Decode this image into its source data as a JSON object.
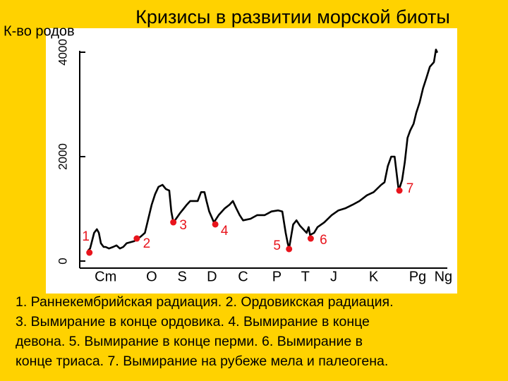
{
  "chart_data": {
    "type": "line",
    "title": "Кризисы в развитии морской биоты",
    "ylabel": "К-во родов",
    "xlim": [
      540,
      0
    ],
    "xticks": [
      {
        "value": 509,
        "label": "Cm"
      },
      {
        "value": 441,
        "label": "O"
      },
      {
        "value": 396,
        "label": "S"
      },
      {
        "value": 352,
        "label": "D"
      },
      {
        "value": 306,
        "label": "C"
      },
      {
        "value": 256,
        "label": "P"
      },
      {
        "value": 214,
        "label": "T"
      },
      {
        "value": 172,
        "label": "J"
      },
      {
        "value": 113,
        "label": "K"
      },
      {
        "value": 48,
        "label": "Pg"
      },
      {
        "value": 10,
        "label": "Ng"
      }
    ],
    "ylim": [
      0,
      4000
    ],
    "yticks": [
      0,
      2000,
      4000
    ],
    "series": [
      {
        "color": "#000000",
        "x": [
          535,
          532,
          526,
          522,
          519,
          516,
          512,
          509,
          504,
          498,
          493,
          488,
          483,
          478,
          467,
          457,
          451,
          446,
          441,
          436,
          431,
          425,
          420,
          415,
          412,
          409,
          405,
          399,
          394,
          389,
          384,
          373,
          368,
          363,
          360,
          356,
          349,
          342,
          333,
          326,
          321,
          316,
          311,
          306,
          295,
          285,
          274,
          264,
          254,
          248,
          243,
          240,
          238,
          235,
          232,
          227,
          222,
          217,
          212,
          209,
          207,
          201,
          196,
          186,
          175,
          165,
          155,
          144,
          134,
          123,
          113,
          102,
          97,
          92,
          87,
          82,
          76,
          71,
          67,
          63,
          59,
          54,
          50,
          45,
          40,
          35,
          30,
          24,
          21,
          19
        ],
        "values": [
          200,
          240,
          540,
          610,
          540,
          340,
          270,
          270,
          240,
          270,
          300,
          240,
          270,
          340,
          380,
          470,
          540,
          810,
          1080,
          1280,
          1420,
          1460,
          1380,
          1350,
          950,
          740,
          810,
          920,
          1000,
          1080,
          1150,
          1150,
          1320,
          1320,
          1150,
          950,
          740,
          880,
          1010,
          1080,
          1150,
          1010,
          880,
          780,
          810,
          880,
          880,
          950,
          970,
          950,
          540,
          340,
          240,
          470,
          700,
          780,
          680,
          610,
          540,
          650,
          500,
          540,
          650,
          740,
          880,
          970,
          1010,
          1080,
          1150,
          1260,
          1320,
          1460,
          1510,
          1820,
          2000,
          2000,
          1350,
          1550,
          1890,
          2360,
          2500,
          2630,
          2840,
          3040,
          3310,
          3510,
          3720,
          3810,
          4050,
          3990
        ]
      }
    ],
    "crises": {
      "color": "#e8141c",
      "labels": [
        "1",
        "2",
        "3",
        "4",
        "5",
        "6",
        "7"
      ],
      "x": [
        533,
        463,
        409,
        347,
        238,
        206,
        75
      ],
      "values": [
        162,
        432,
        743,
        703,
        230,
        432,
        1351
      ]
    },
    "caption": [
      "1. Раннекембрийская радиация. 2. Ордовикская радиация.",
      "3. Вымирание в конце ордовика. 4. Вымирание в конце",
      "девона. 5. Вымирание в конце перми. 6. Вымирание в",
      "конце триаса. 7. Вымирание на рубеже мела и палеогена."
    ]
  }
}
